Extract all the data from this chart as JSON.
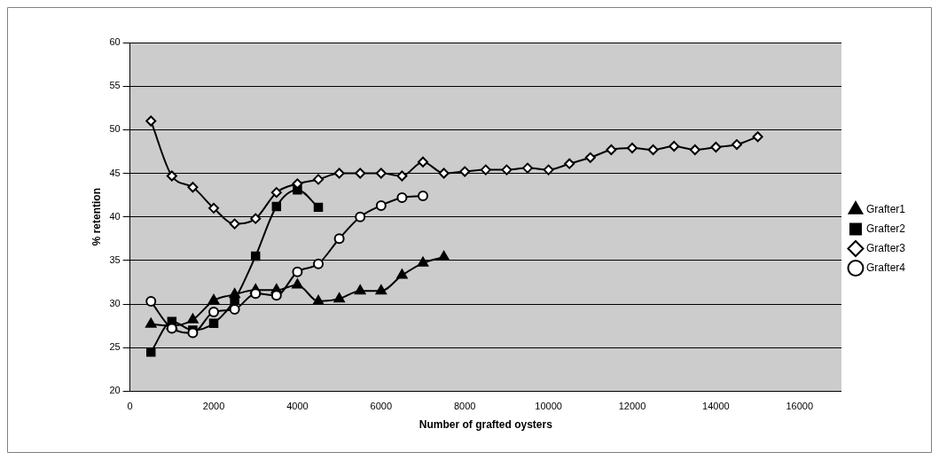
{
  "chart_data": {
    "type": "line",
    "xlabel": "Number of grafted oysters",
    "ylabel": "% retention",
    "xlim": [
      0,
      17000
    ],
    "xticks": [
      0,
      2000,
      4000,
      6000,
      8000,
      10000,
      12000,
      14000,
      16000
    ],
    "ylim": [
      20,
      60
    ],
    "yticks": [
      20,
      25,
      30,
      35,
      40,
      45,
      50,
      55,
      60
    ],
    "grid": "y",
    "legend": "right",
    "series": [
      {
        "name": "Grafter1",
        "color": "#000000",
        "marker": "triangle",
        "x": [
          500,
          1000,
          1500,
          2000,
          2500,
          3000,
          3500,
          4000,
          4500,
          5000,
          5500,
          6000,
          6500,
          7000,
          7500
        ],
        "values": [
          27.7,
          27.5,
          28.2,
          30.4,
          31.1,
          31.6,
          31.6,
          32.2,
          30.3,
          30.6,
          31.5,
          31.5,
          33.3,
          34.7,
          35.4
        ]
      },
      {
        "name": "Grafter2",
        "color": "#000000",
        "marker": "square",
        "x": [
          500,
          1000,
          1500,
          2000,
          2500,
          3000,
          3500,
          4000,
          4500
        ],
        "values": [
          24.5,
          28,
          27,
          27.8,
          30.5,
          35.5,
          41.2,
          43.1,
          41.1
        ]
      },
      {
        "name": "Grafter3",
        "color": "#000000",
        "marker": "diamond",
        "x": [
          500,
          1000,
          1500,
          2000,
          2500,
          3000,
          3500,
          4000,
          4500,
          5000,
          5500,
          6000,
          6500,
          7000,
          7500,
          8000,
          8500,
          9000,
          9500,
          10000,
          10500,
          11000,
          11500,
          12000,
          12500,
          13000,
          13500,
          14000,
          14500,
          15000
        ],
        "values": [
          51,
          44.7,
          43.4,
          41,
          39.2,
          39.8,
          42.8,
          43.8,
          44.3,
          45,
          45,
          45,
          44.7,
          46.3,
          45,
          45.2,
          45.4,
          45.4,
          45.6,
          45.4,
          46.1,
          46.8,
          47.7,
          47.9,
          47.7,
          48.1,
          47.7,
          48,
          48.3,
          49.2
        ]
      },
      {
        "name": "Grafter4",
        "color": "#000000",
        "marker": "circle",
        "x": [
          500,
          1000,
          1500,
          2000,
          2500,
          3000,
          3500,
          4000,
          4500,
          5000,
          5500,
          6000,
          6500,
          7000
        ],
        "values": [
          30.3,
          27.2,
          26.7,
          29.1,
          29.4,
          31.2,
          31,
          33.7,
          34.6,
          37.5,
          40,
          41.3,
          42.2,
          42.4
        ]
      }
    ]
  }
}
